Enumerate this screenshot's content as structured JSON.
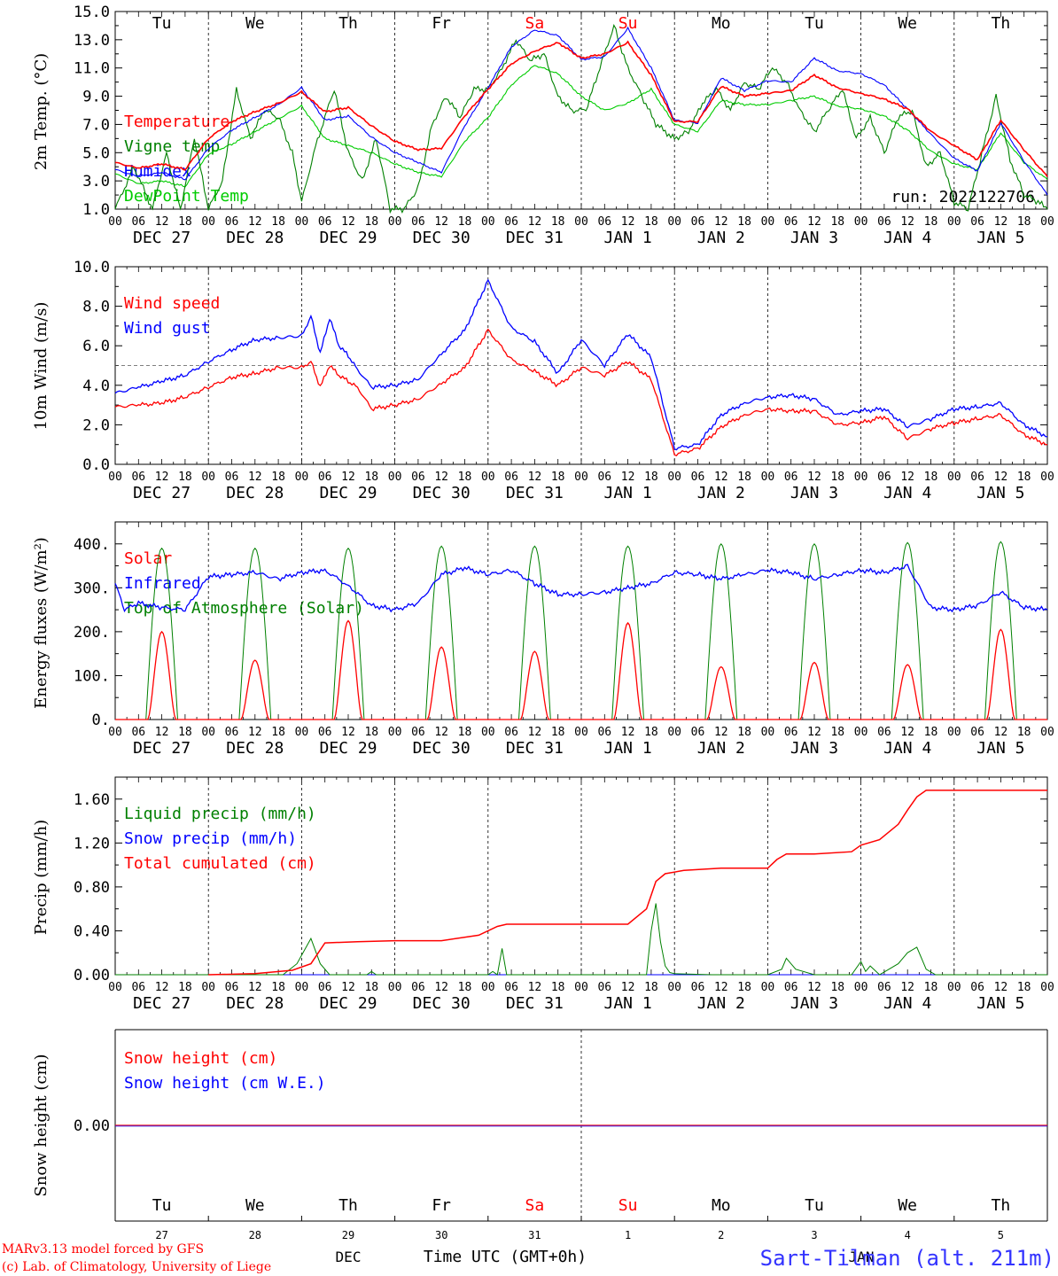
{
  "colors": {
    "red": "#ff0000",
    "blue": "#0000ff",
    "green": "#008000",
    "lightgreen": "#00cc00",
    "purple": "#8000a0"
  },
  "day_names": [
    "Tu",
    "We",
    "Th",
    "Fr",
    "Sa",
    "Su",
    "Mo",
    "Tu",
    "We",
    "Th"
  ],
  "weekend_day_indices": [
    4,
    5
  ],
  "date_labels": [
    "DEC 27",
    "DEC 28",
    "DEC 29",
    "DEC 30",
    "DEC 31",
    "JAN  1",
    "JAN  2",
    "JAN  3",
    "JAN  4",
    "JAN  5"
  ],
  "hour_ticks": [
    "00",
    "06",
    "12",
    "18"
  ],
  "final_hour_tick": "00",
  "run_label": "run: 2022122706",
  "footer": {
    "model_line1": "MARv3.13 model forced by GFS",
    "model_line2": "(c) Lab. of Climatology, University of Liege",
    "axis_title": "Time UTC (GMT+0h)",
    "month_left": "DEC",
    "month_right": "JAN",
    "station": "Sart-Tilman (alt. 211m)",
    "day_numbers": [
      "27",
      "28",
      "29",
      "30",
      "31",
      "1",
      "2",
      "3",
      "4",
      "5"
    ]
  },
  "chart_data": [
    {
      "type": "line",
      "ylabel": "2m Temp. (°C)",
      "ylim": [
        1.0,
        15.0
      ],
      "yticks": [
        "1.0",
        "3.0",
        "5.0",
        "7.0",
        "9.0",
        "11.0",
        "13.0",
        "15.0"
      ],
      "x_unit": "days since DEC 27 00 UTC",
      "legend": [
        "Temperature",
        "Vigne temp",
        "Humidex",
        "DewPoint Temp"
      ],
      "series": [
        {
          "name": "Temperature",
          "color": "#ff0000",
          "x": [
            0,
            0.25,
            0.5,
            0.75,
            1,
            1.25,
            1.5,
            1.75,
            2,
            2.25,
            2.5,
            2.75,
            3,
            3.25,
            3.5,
            3.75,
            4,
            4.25,
            4.5,
            4.75,
            5,
            5.25,
            5.5,
            5.75,
            6,
            6.25,
            6.5,
            6.75,
            7,
            7.25,
            7.5,
            7.75,
            8,
            8.25,
            8.5,
            8.75,
            9,
            9.25,
            9.5,
            9.75,
            10
          ],
          "y": [
            4.3,
            3.9,
            4.2,
            3.8,
            6.0,
            7.2,
            7.9,
            8.5,
            9.3,
            7.9,
            8.2,
            6.9,
            5.8,
            5.2,
            5.3,
            7.6,
            9.5,
            11.3,
            12.2,
            12.8,
            11.7,
            12.0,
            12.8,
            10.5,
            7.2,
            7.2,
            9.7,
            9.0,
            9.2,
            9.4,
            10.5,
            9.6,
            9.2,
            8.8,
            8.1,
            6.5,
            5.5,
            4.5,
            7.3,
            5.2,
            3.3
          ]
        },
        {
          "name": "Vigne temp",
          "color": "#008000",
          "x": [
            0,
            0.2,
            0.4,
            0.55,
            0.7,
            0.85,
            1,
            1.15,
            1.3,
            1.45,
            1.6,
            1.75,
            1.9,
            2,
            2.15,
            2.35,
            2.5,
            2.65,
            2.8,
            2.95,
            3.1,
            3.25,
            3.4,
            3.55,
            3.7,
            3.85,
            4,
            4.15,
            4.3,
            4.45,
            4.6,
            4.75,
            4.9,
            5.05,
            5.2,
            5.35,
            5.5,
            5.65,
            5.8,
            6,
            6.15,
            6.3,
            6.45,
            6.6,
            6.75,
            6.9,
            7.05,
            7.2,
            7.35,
            7.5,
            7.65,
            7.8,
            7.95,
            8.1,
            8.25,
            8.4,
            8.55,
            8.7,
            8.85,
            9,
            9.15,
            9.3,
            9.45,
            9.6,
            9.75,
            9.9,
            10
          ],
          "y": [
            1.0,
            4.0,
            1.0,
            5.0,
            0.5,
            6.0,
            1.0,
            3.0,
            9.5,
            6.0,
            8.0,
            7.5,
            5.0,
            1.5,
            5.5,
            9.5,
            5.0,
            3.0,
            6.0,
            1.0,
            1.0,
            2.5,
            7.0,
            9.0,
            7.5,
            9.5,
            9.5,
            11.0,
            13.0,
            11.5,
            12.0,
            9.0,
            8.0,
            8.0,
            11.0,
            14.0,
            11.0,
            9.0,
            7.0,
            6.0,
            6.5,
            8.5,
            9.5,
            8.0,
            10.0,
            9.5,
            11.0,
            10.0,
            8.0,
            6.5,
            8.0,
            9.5,
            6.0,
            7.5,
            5.0,
            7.5,
            8.0,
            4.0,
            5.0,
            1.5,
            0.5,
            5.0,
            9.0,
            4.5,
            2.0,
            1.5,
            1.0
          ]
        },
        {
          "name": "Humidex",
          "color": "#0000ff",
          "x": [
            0,
            0.25,
            0.5,
            0.75,
            1,
            1.25,
            1.5,
            1.75,
            2,
            2.25,
            2.5,
            2.75,
            3,
            3.25,
            3.5,
            3.75,
            4,
            4.25,
            4.5,
            4.75,
            5,
            5.25,
            5.5,
            5.75,
            6,
            6.25,
            6.5,
            6.75,
            7,
            7.25,
            7.5,
            7.75,
            8,
            8.25,
            8.5,
            8.75,
            9,
            9.25,
            9.5,
            9.75,
            10
          ],
          "y": [
            3.8,
            3.3,
            3.6,
            3.1,
            5.3,
            6.6,
            7.5,
            8.4,
            9.6,
            7.3,
            7.6,
            6.1,
            5.0,
            4.3,
            3.6,
            6.9,
            9.6,
            12.5,
            13.7,
            13.3,
            11.6,
            11.8,
            13.8,
            11.0,
            7.3,
            7.1,
            10.3,
            9.4,
            10.1,
            10.0,
            11.7,
            10.8,
            10.6,
            9.8,
            8.1,
            6.3,
            4.6,
            3.7,
            7.1,
            4.4,
            2.0
          ]
        },
        {
          "name": "DewPoint Temp",
          "color": "#00cc00",
          "x": [
            0,
            0.25,
            0.5,
            0.75,
            1,
            1.25,
            1.5,
            1.75,
            2,
            2.25,
            2.5,
            2.75,
            3,
            3.25,
            3.5,
            3.75,
            4,
            4.25,
            4.5,
            4.75,
            5,
            5.25,
            5.5,
            5.75,
            6,
            6.25,
            6.5,
            6.75,
            7,
            7.25,
            7.5,
            7.75,
            8,
            8.25,
            8.5,
            8.75,
            9,
            9.25,
            9.5,
            9.75,
            10
          ],
          "y": [
            3.5,
            2.8,
            3.0,
            2.6,
            4.9,
            5.6,
            6.5,
            7.4,
            8.3,
            6.0,
            5.5,
            5.0,
            4.2,
            3.6,
            3.3,
            5.8,
            7.5,
            9.8,
            11.2,
            10.6,
            9.0,
            8.0,
            8.5,
            9.5,
            7.0,
            6.5,
            8.7,
            8.4,
            8.4,
            8.7,
            9.0,
            8.3,
            8.1,
            7.6,
            6.6,
            5.1,
            4.2,
            3.8,
            6.4,
            4.3,
            3.1
          ]
        }
      ]
    },
    {
      "type": "line",
      "ylabel": "10m Wind (m/s)",
      "ylim": [
        0.0,
        10.0
      ],
      "yticks": [
        "0.0",
        "2.0",
        "4.0",
        "6.0",
        "8.0",
        "10.0"
      ],
      "reference_line": 5.0,
      "legend": [
        "Wind speed",
        "Wind gust"
      ],
      "series": [
        {
          "name": "Wind speed",
          "color": "#ff0000",
          "x": [
            0,
            0.25,
            0.5,
            0.75,
            1,
            1.25,
            1.5,
            1.75,
            2,
            2.1,
            2.2,
            2.3,
            2.4,
            2.5,
            2.6,
            2.75,
            3,
            3.25,
            3.5,
            3.75,
            4,
            4.25,
            4.5,
            4.75,
            5,
            5.25,
            5.5,
            5.75,
            6,
            6.25,
            6.5,
            6.75,
            7,
            7.25,
            7.5,
            7.75,
            8,
            8.25,
            8.5,
            8.75,
            9,
            9.25,
            9.5,
            9.75,
            10
          ],
          "y": [
            2.9,
            3.0,
            3.1,
            3.4,
            3.9,
            4.4,
            4.6,
            4.9,
            4.9,
            5.2,
            3.9,
            5.0,
            4.5,
            4.2,
            3.9,
            2.8,
            3.0,
            3.3,
            4.1,
            4.9,
            6.8,
            5.3,
            4.7,
            4.0,
            4.9,
            4.5,
            5.2,
            4.3,
            0.5,
            0.8,
            1.9,
            2.5,
            2.8,
            2.7,
            2.7,
            2.0,
            2.1,
            2.4,
            1.3,
            1.8,
            2.1,
            2.3,
            2.5,
            1.5,
            1.0
          ]
        },
        {
          "name": "Wind gust",
          "color": "#0000ff",
          "x": [
            0,
            0.25,
            0.5,
            0.75,
            1,
            1.25,
            1.5,
            1.75,
            2,
            2.1,
            2.2,
            2.3,
            2.4,
            2.5,
            2.6,
            2.75,
            3,
            3.25,
            3.5,
            3.75,
            4,
            4.25,
            4.5,
            4.75,
            5,
            5.25,
            5.5,
            5.75,
            6,
            6.25,
            6.5,
            6.75,
            7,
            7.25,
            7.5,
            7.75,
            8,
            8.25,
            8.5,
            8.75,
            9,
            9.25,
            9.5,
            9.75,
            10
          ],
          "y": [
            3.6,
            3.9,
            4.2,
            4.5,
            5.2,
            5.8,
            6.3,
            6.4,
            6.5,
            7.5,
            5.6,
            7.4,
            6.0,
            5.5,
            4.8,
            3.9,
            4.0,
            4.3,
            5.6,
            6.8,
            9.3,
            6.9,
            6.2,
            4.6,
            6.3,
            5.0,
            6.6,
            5.4,
            0.8,
            1.0,
            2.5,
            3.1,
            3.4,
            3.5,
            3.3,
            2.5,
            2.7,
            2.8,
            1.9,
            2.3,
            2.8,
            2.9,
            3.1,
            2.0,
            1.4
          ]
        }
      ]
    },
    {
      "type": "line",
      "ylabel": "Energy fluxes (W/m²)",
      "ylim": [
        0,
        450
      ],
      "yticks": [
        "0.",
        "100.",
        "200.",
        "300.",
        "400."
      ],
      "legend": [
        "Solar",
        "Infrared",
        "Top of Atmosphere (Solar)"
      ],
      "series": [
        {
          "name": "Solar",
          "color": "#ff0000",
          "solar_noon_offset_days": 0.5,
          "daily_peaks": [
            200,
            135,
            225,
            165,
            155,
            220,
            120,
            130,
            125,
            205
          ]
        },
        {
          "name": "Infrared",
          "color": "#0000ff",
          "x": [
            0,
            0.1,
            0.25,
            0.5,
            0.75,
            1,
            1.25,
            1.5,
            1.75,
            2,
            2.25,
            2.5,
            2.75,
            3,
            3.25,
            3.5,
            3.75,
            4,
            4.25,
            4.5,
            4.75,
            5,
            5.25,
            5.5,
            5.75,
            6,
            6.25,
            6.5,
            6.75,
            7,
            7.25,
            7.5,
            7.75,
            8,
            8.25,
            8.5,
            8.75,
            9,
            9.25,
            9.5,
            9.75,
            10
          ],
          "y": [
            310,
            250,
            265,
            255,
            250,
            325,
            330,
            335,
            320,
            335,
            340,
            305,
            260,
            250,
            265,
            330,
            345,
            330,
            340,
            310,
            285,
            285,
            290,
            300,
            310,
            335,
            330,
            320,
            330,
            340,
            335,
            320,
            330,
            340,
            335,
            350,
            255,
            250,
            260,
            290,
            255,
            250
          ]
        },
        {
          "name": "Top of Atmosphere (Solar)",
          "color": "#008000",
          "solar_noon_offset_days": 0.5,
          "daily_peaks": [
            390,
            390,
            390,
            395,
            395,
            395,
            400,
            400,
            403,
            405
          ]
        }
      ]
    },
    {
      "type": "line",
      "ylabel": "Precip (mm/h)",
      "ylim": [
        0,
        1.8
      ],
      "yticks": [
        "0.00",
        "0.40",
        "0.80",
        "1.20",
        "1.60"
      ],
      "legend": [
        "Liquid precip (mm/h)",
        "Snow precip (mm/h)",
        "Total cumulated (cm)"
      ],
      "series": [
        {
          "name": "Liquid precip (mm/h)",
          "color": "#008000",
          "x": [
            0,
            1,
            1.8,
            1.95,
            2.1,
            2.2,
            2.3,
            2.7,
            2.75,
            2.8,
            3,
            4,
            4.05,
            4.1,
            4.15,
            4.2,
            4.25,
            5,
            5.7,
            5.75,
            5.8,
            5.85,
            5.9,
            5.95,
            6,
            6.4,
            7,
            7.15,
            7.2,
            7.3,
            7.5,
            7.9,
            8.0,
            8.05,
            8.1,
            8.2,
            8.3,
            8.4,
            8.5,
            8.6,
            8.65,
            8.7,
            8.8,
            9,
            10
          ],
          "y": [
            0,
            0,
            0,
            0.1,
            0.33,
            0.1,
            0,
            0,
            0.03,
            0,
            0,
            0,
            0.03,
            0,
            0.24,
            0,
            0,
            0,
            0,
            0.4,
            0.65,
            0.3,
            0.08,
            0.02,
            0.01,
            0,
            0,
            0.05,
            0.15,
            0.05,
            0,
            0,
            0.12,
            0.03,
            0.08,
            0,
            0.05,
            0.1,
            0.2,
            0.25,
            0.15,
            0.05,
            0,
            0,
            0
          ]
        },
        {
          "name": "Snow precip (mm/h)",
          "color": "#0000ff",
          "x": [
            0,
            10
          ],
          "y": [
            0,
            0
          ]
        },
        {
          "name": "Total cumulated (cm)",
          "color": "#ff0000",
          "x": [
            1,
            1.5,
            1.9,
            2.1,
            2.25,
            2.6,
            3,
            3.5,
            3.9,
            4.1,
            4.2,
            4.5,
            5,
            5.5,
            5.7,
            5.8,
            5.9,
            6.1,
            6.5,
            7,
            7.1,
            7.2,
            7.5,
            7.9,
            8.0,
            8.2,
            8.4,
            8.5,
            8.6,
            8.7,
            8.8,
            9,
            10
          ],
          "y": [
            0,
            0.01,
            0.04,
            0.1,
            0.29,
            0.3,
            0.31,
            0.31,
            0.36,
            0.44,
            0.46,
            0.46,
            0.46,
            0.46,
            0.6,
            0.85,
            0.92,
            0.95,
            0.97,
            0.97,
            1.05,
            1.1,
            1.1,
            1.12,
            1.18,
            1.23,
            1.37,
            1.5,
            1.62,
            1.68,
            1.68,
            1.68,
            1.68
          ]
        }
      ]
    },
    {
      "type": "line",
      "ylabel": "Snow height (cm)",
      "yticks": [
        "0.00"
      ],
      "legend": [
        "Snow height (cm)",
        "Snow height (cm W.E.)"
      ],
      "series": [
        {
          "name": "Snow height (cm)",
          "color": "#ff0000",
          "x": [
            0,
            10
          ],
          "y": [
            0,
            0
          ]
        },
        {
          "name": "Snow height (cm W.E.)",
          "color": "#0000ff",
          "x": [
            0,
            10
          ],
          "y": [
            0,
            0
          ]
        }
      ]
    }
  ]
}
